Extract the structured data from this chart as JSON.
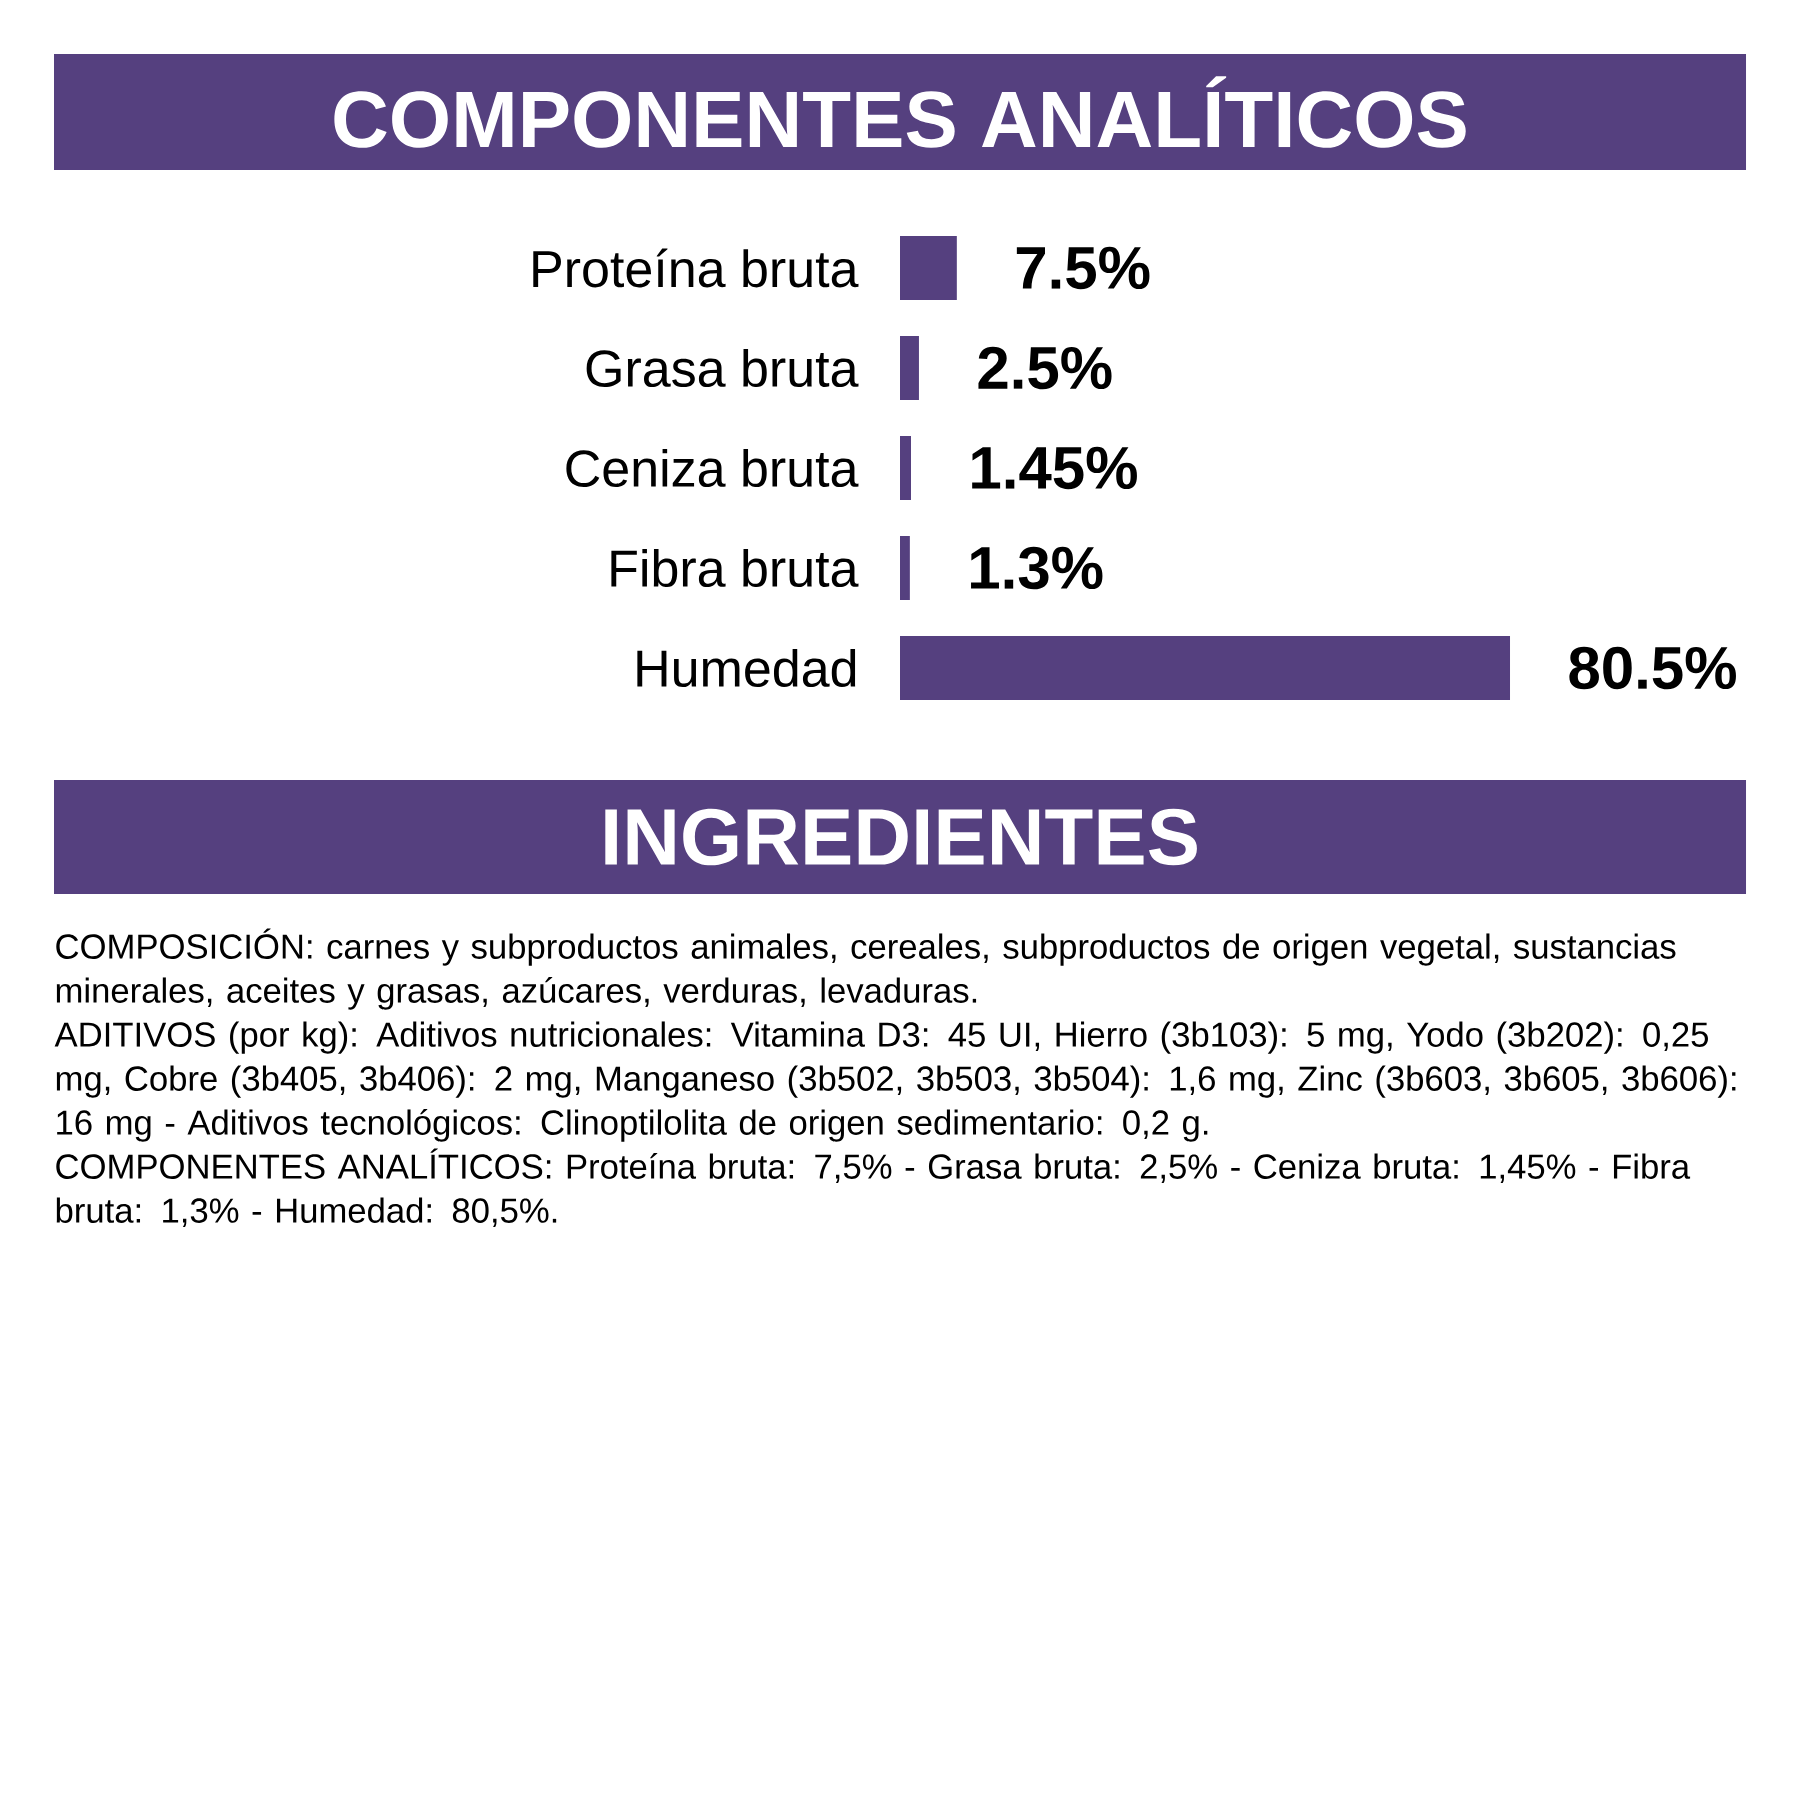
{
  "chart_data": {
    "type": "bar",
    "orientation": "horizontal",
    "title": "COMPONENTES ANALÍTICOS",
    "categories": [
      "Proteína bruta",
      "Grasa bruta",
      "Ceniza bruta",
      "Fibra bruta",
      "Humedad"
    ],
    "values": [
      7.5,
      2.5,
      1.45,
      1.3,
      80.5
    ],
    "color": "#55407f",
    "value_labels": [
      "7.5%",
      "2.5%",
      "1.45%",
      "1.3%",
      "80.5%"
    ],
    "annotations": [
      "INGREDIENTES",
      "COMPOSICIÓN: carnes y subproductos animales, cereales, subproductos de origen vegetal, sustancias minerales, aceites y grasas, azúcares, verduras, levaduras.",
      "ADITIVOS (por kg): Aditivos nutricionales: Vitamina D3: 45 UI, Hierro (3b103): 5 mg, Yodo (3b202): 0,25 mg, Cobre (3b405, 3b406): 2 mg, Manganeso (3b502, 3b503, 3b504): 1,6 mg, Zinc (3b603, 3b605, 3b606): 16 mg - Aditivos tecnológicos: Clinoptilolita de origen sedimentario: 0,2 g.",
      "COMPONENTES ANALÍTICOS: Proteína bruta: 7,5% - Grasa bruta: 2,5% - Ceniza bruta: 1,45% - Fibra bruta: 1,3% - Humedad: 80,5%."
    ]
  }
}
